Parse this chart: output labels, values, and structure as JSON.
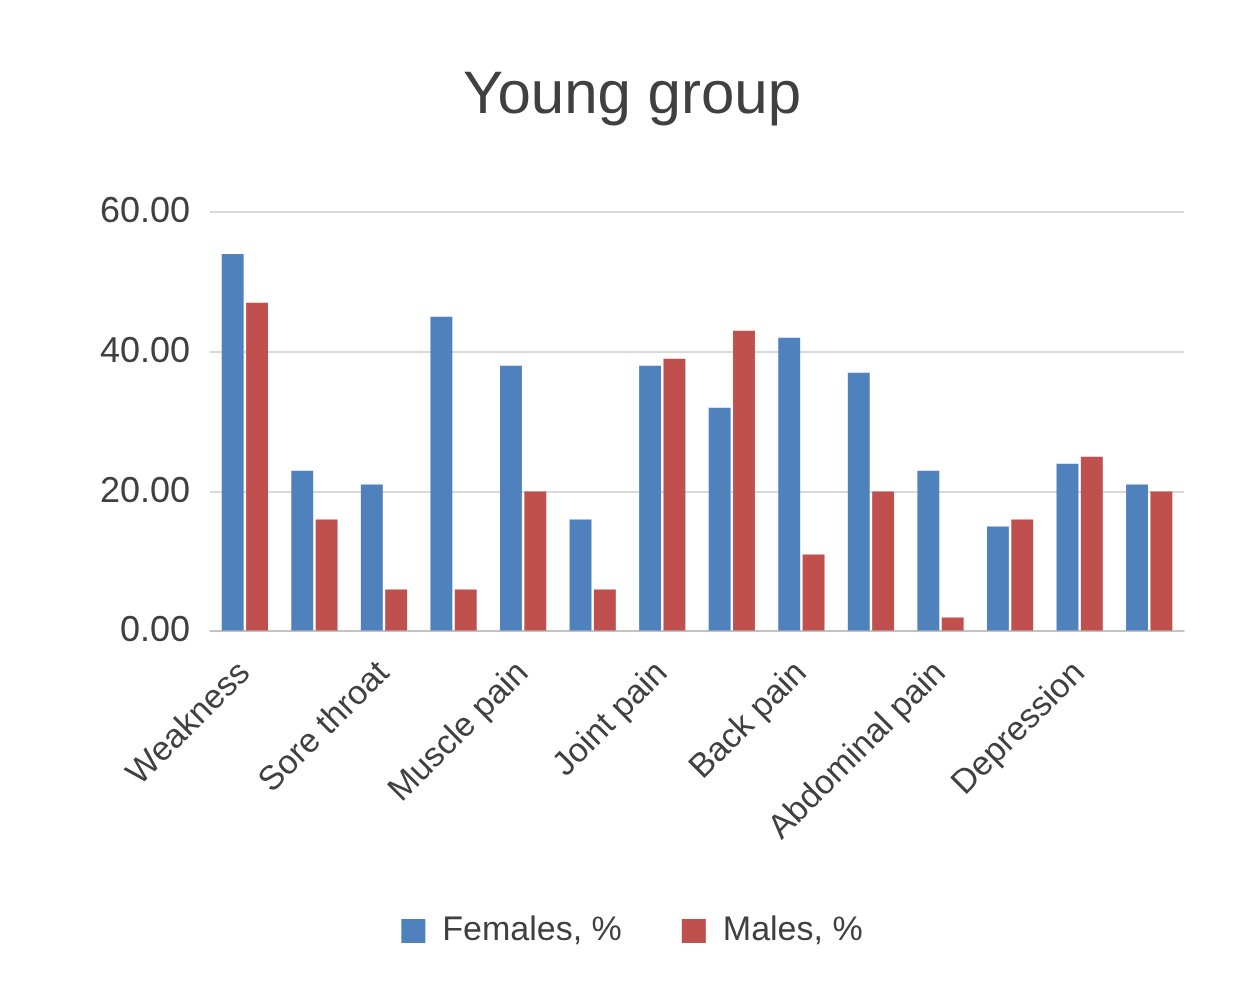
{
  "chart_data": {
    "type": "bar",
    "title": "Young group",
    "categories": [
      "Weakness",
      null,
      "Sore throat",
      null,
      "Muscle pain",
      null,
      "Joint pain",
      null,
      "Back pain",
      null,
      "Abdominal pain",
      null,
      "Depression",
      null
    ],
    "series": [
      {
        "name": "Females, %",
        "color": "#4f81bd",
        "values": [
          54,
          23,
          21,
          45,
          38,
          16,
          38,
          32,
          42,
          37,
          23,
          15,
          24,
          21
        ]
      },
      {
        "name": "Males, %",
        "color": "#c0504d",
        "values": [
          47,
          16,
          6,
          6,
          20,
          6,
          39,
          43,
          11,
          20,
          2,
          16,
          25,
          20
        ]
      }
    ],
    "ylim": [
      0,
      60
    ],
    "yticks": [
      {
        "value": 0,
        "label": "0.00"
      },
      {
        "value": 20,
        "label": "20.00"
      },
      {
        "value": 40,
        "label": "40.00"
      },
      {
        "value": 60,
        "label": "60.00"
      }
    ],
    "grid": "y",
    "legend": "bottom"
  }
}
